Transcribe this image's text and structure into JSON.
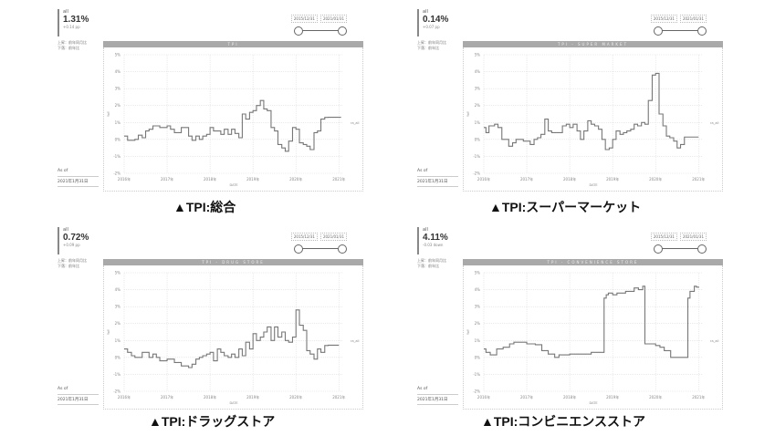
{
  "common": {
    "kpi_label": "all",
    "meta_line1": "上昇：前年同月比",
    "meta_line2": "下落：前年比",
    "as_of_label": "As of",
    "as_of_date": "2021年1月31日",
    "range_start": "2015/12/31",
    "range_end": "2021/01/31",
    "x_axis_label": "DATE",
    "y_axis_label": "YoY",
    "series_tag": "ra_all"
  },
  "panels": [
    {
      "id": "total",
      "kpi_value": "1.31%",
      "kpi_sub": "+0.14 pp",
      "title": "TPI",
      "caption": "▲TPI:総合"
    },
    {
      "id": "supermarket",
      "kpi_value": "0.14%",
      "kpi_sub": "+0.07 pp",
      "title": "TPI - SUPER MARKET",
      "caption": "▲TPI:スーパーマーケット"
    },
    {
      "id": "drugstore",
      "kpi_value": "0.72%",
      "kpi_sub": "+0.09 pp",
      "title": "TPI - DRUG STORE",
      "caption": "▲TPI:ドラッグストア"
    },
    {
      "id": "convenience",
      "kpi_value": "4.11%",
      "kpi_sub": "-0.03 down",
      "title": "TPI - CONVENIENCE STORE",
      "caption": "▲TPI:コンビニエンスストア"
    }
  ],
  "chart_data": [
    {
      "type": "line",
      "title": "TPI",
      "xlabel": "DATE",
      "ylabel": "YoY",
      "ylim": [
        -2,
        5
      ],
      "yticks": [
        "5%",
        "4%",
        "3%",
        "2%",
        "1%",
        "0%",
        "-1%",
        "-2%"
      ],
      "xticks": [
        "2016年",
        "2017年",
        "2018年",
        "2019年",
        "2020年",
        "2021年"
      ],
      "xlim": [
        2016,
        2021.1
      ],
      "grid": true,
      "legend": "ra_all",
      "x": [
        2016.0,
        2016.08,
        2016.25,
        2016.33,
        2016.42,
        2016.5,
        2016.58,
        2016.67,
        2016.83,
        2017.0,
        2017.08,
        2017.17,
        2017.33,
        2017.5,
        2017.58,
        2017.67,
        2017.75,
        2017.83,
        2017.92,
        2018.0,
        2018.08,
        2018.25,
        2018.33,
        2018.42,
        2018.5,
        2018.58,
        2018.67,
        2018.75,
        2018.83,
        2018.92,
        2019.0,
        2019.08,
        2019.17,
        2019.25,
        2019.33,
        2019.42,
        2019.5,
        2019.58,
        2019.67,
        2019.75,
        2019.83,
        2019.92,
        2020.0,
        2020.08,
        2020.17,
        2020.25,
        2020.33,
        2020.42,
        2020.5,
        2020.58,
        2020.67,
        2020.75,
        2020.83,
        2020.92,
        2021.0,
        2021.05
      ],
      "values": [
        0.2,
        -0.05,
        0.0,
        0.25,
        0.1,
        0.5,
        0.6,
        0.8,
        0.7,
        0.8,
        0.6,
        0.4,
        0.7,
        0.2,
        -0.05,
        0.2,
        0.0,
        0.2,
        0.3,
        0.7,
        0.5,
        0.3,
        0.6,
        0.3,
        0.6,
        0.35,
        0.1,
        1.5,
        1.2,
        1.6,
        1.7,
        2.0,
        2.3,
        1.8,
        1.7,
        0.7,
        0.5,
        -0.3,
        -0.5,
        -0.7,
        -0.1,
        0.7,
        0.6,
        -0.2,
        -0.3,
        -0.4,
        -0.6,
        0.4,
        0.5,
        1.2,
        1.3,
        1.31,
        1.31,
        1.31,
        1.31,
        1.31
      ]
    },
    {
      "type": "line",
      "title": "TPI - SUPER MARKET",
      "xlabel": "DATE",
      "ylabel": "YoY",
      "ylim": [
        -2,
        5
      ],
      "yticks": [
        "5%",
        "4%",
        "3%",
        "2%",
        "1%",
        "0%",
        "-1%",
        "-2%"
      ],
      "xticks": [
        "2016年",
        "2017年",
        "2018年",
        "2019年",
        "2020年",
        "2021年"
      ],
      "xlim": [
        2016,
        2021.1
      ],
      "grid": true,
      "legend": "ra_all",
      "x": [
        2016.0,
        2016.05,
        2016.12,
        2016.25,
        2016.33,
        2016.42,
        2016.5,
        2016.58,
        2016.67,
        2016.75,
        2016.92,
        2017.0,
        2017.08,
        2017.17,
        2017.25,
        2017.33,
        2017.42,
        2017.5,
        2017.58,
        2017.67,
        2017.83,
        2017.92,
        2018.0,
        2018.08,
        2018.17,
        2018.25,
        2018.33,
        2018.42,
        2018.5,
        2018.58,
        2018.67,
        2018.75,
        2018.83,
        2018.92,
        2019.0,
        2019.08,
        2019.17,
        2019.25,
        2019.33,
        2019.42,
        2019.5,
        2019.58,
        2019.67,
        2019.75,
        2019.83,
        2019.92,
        2020.0,
        2020.08,
        2020.17,
        2020.25,
        2020.33,
        2020.42,
        2020.5,
        2020.58,
        2020.67,
        2020.75,
        2020.83,
        2020.92,
        2021.0
      ],
      "values": [
        0.7,
        0.4,
        0.8,
        0.9,
        0.7,
        0.0,
        0.0,
        -0.4,
        -0.2,
        0.0,
        -0.1,
        -0.1,
        -0.3,
        0.0,
        0.1,
        0.3,
        1.2,
        0.5,
        0.4,
        0.4,
        0.8,
        0.9,
        0.7,
        0.9,
        0.5,
        0.0,
        0.5,
        1.1,
        0.9,
        0.8,
        0.6,
        0.0,
        -0.6,
        -0.5,
        0.0,
        0.5,
        0.3,
        0.4,
        0.5,
        0.6,
        0.9,
        0.8,
        1.0,
        0.9,
        2.3,
        3.8,
        3.9,
        1.5,
        0.8,
        0.2,
        0.1,
        -0.1,
        -0.5,
        -0.3,
        0.14,
        0.14,
        0.14,
        0.14,
        0.14
      ]
    },
    {
      "type": "line",
      "title": "TPI - DRUG STORE",
      "xlabel": "DATE",
      "ylabel": "YoY",
      "ylim": [
        -2,
        5
      ],
      "yticks": [
        "5%",
        "4%",
        "3%",
        "2%",
        "1%",
        "0%",
        "-1%",
        "-2%"
      ],
      "xticks": [
        "2016年",
        "2017年",
        "2018年",
        "2019年",
        "2020年",
        "2021年"
      ],
      "xlim": [
        2016,
        2021.1
      ],
      "grid": true,
      "legend": "ra_all",
      "x": [
        2016.0,
        2016.08,
        2016.17,
        2016.25,
        2016.42,
        2016.58,
        2016.67,
        2016.75,
        2016.83,
        2017.0,
        2017.17,
        2017.33,
        2017.5,
        2017.58,
        2017.67,
        2017.75,
        2017.83,
        2017.92,
        2018.0,
        2018.08,
        2018.17,
        2018.25,
        2018.33,
        2018.42,
        2018.5,
        2018.58,
        2018.67,
        2018.75,
        2018.83,
        2018.92,
        2019.0,
        2019.08,
        2019.17,
        2019.25,
        2019.33,
        2019.42,
        2019.5,
        2019.58,
        2019.67,
        2019.75,
        2019.83,
        2019.92,
        2020.0,
        2020.08,
        2020.17,
        2020.25,
        2020.33,
        2020.42,
        2020.5,
        2020.58,
        2020.67,
        2020.75,
        2020.83,
        2020.92,
        2021.0
      ],
      "values": [
        0.5,
        0.3,
        0.1,
        0.0,
        0.3,
        0.0,
        0.2,
        0.0,
        -0.2,
        -0.1,
        -0.3,
        -0.5,
        -0.6,
        -0.4,
        -0.1,
        0.0,
        0.1,
        0.2,
        0.3,
        -0.2,
        0.5,
        0.3,
        0.1,
        0.0,
        0.2,
        0.0,
        0.5,
        0.1,
        0.9,
        0.5,
        1.4,
        1.0,
        1.2,
        1.5,
        1.8,
        1.0,
        1.8,
        1.2,
        1.5,
        1.0,
        0.9,
        1.2,
        2.8,
        1.9,
        1.6,
        0.4,
        0.2,
        -0.1,
        0.5,
        0.3,
        0.7,
        0.72,
        0.72,
        0.72,
        0.72
      ]
    },
    {
      "type": "line",
      "title": "TPI - CONVENIENCE STORE",
      "xlabel": "DATE",
      "ylabel": "YoY",
      "ylim": [
        -2,
        5
      ],
      "yticks": [
        "5%",
        "4%",
        "3%",
        "2%",
        "1%",
        "0%",
        "-1%",
        "-2%"
      ],
      "xticks": [
        "2016年",
        "2017年",
        "2018年",
        "2019年",
        "2020年",
        "2021年"
      ],
      "xlim": [
        2016,
        2021.1
      ],
      "grid": true,
      "legend": "ra_all",
      "x": [
        2016.0,
        2016.05,
        2016.15,
        2016.3,
        2016.45,
        2016.6,
        2016.7,
        2017.0,
        2017.2,
        2017.35,
        2017.5,
        2017.65,
        2017.75,
        2018.0,
        2018.5,
        2018.8,
        2018.85,
        2018.9,
        2019.0,
        2019.1,
        2019.3,
        2019.5,
        2019.6,
        2019.7,
        2019.75,
        2020.0,
        2020.1,
        2020.2,
        2020.35,
        2020.45,
        2020.75,
        2020.8,
        2020.9,
        2020.95,
        2021.0
      ],
      "values": [
        0.5,
        0.3,
        0.15,
        0.5,
        0.6,
        0.8,
        0.9,
        0.8,
        0.75,
        0.4,
        0.2,
        0.0,
        0.15,
        0.2,
        0.3,
        3.5,
        3.7,
        3.8,
        3.7,
        3.8,
        3.9,
        4.1,
        4.0,
        4.2,
        0.8,
        0.7,
        0.6,
        0.4,
        0.0,
        0.0,
        3.5,
        3.9,
        4.2,
        4.15,
        4.11
      ]
    }
  ]
}
